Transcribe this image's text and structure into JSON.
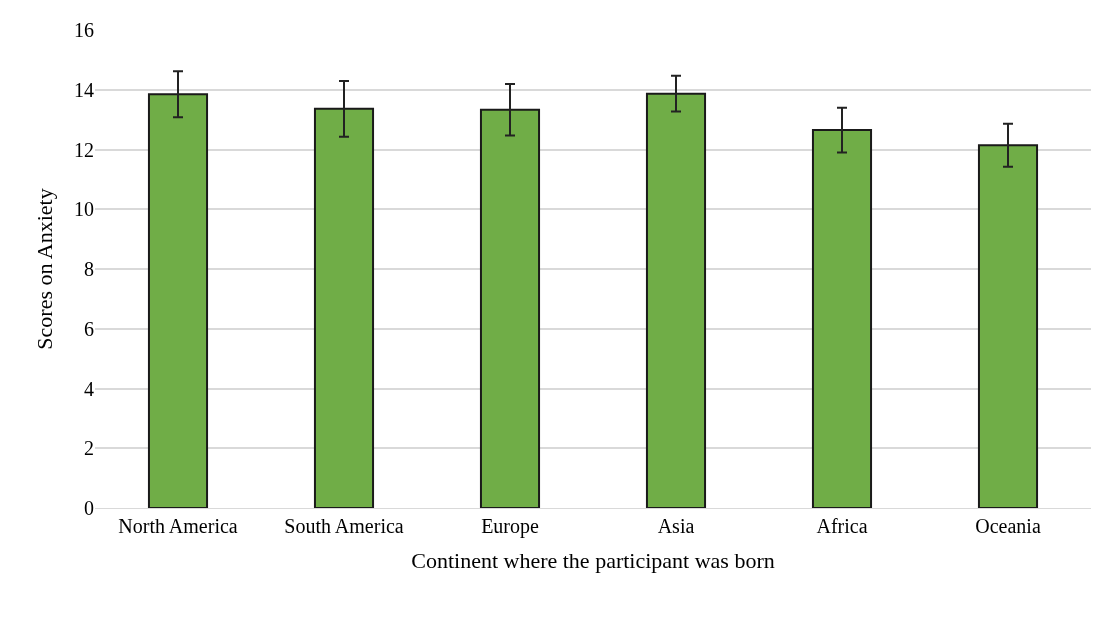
{
  "chart_data": {
    "type": "bar",
    "xlabel": "Continent where the participant was born",
    "ylabel": "Scores on Anxiety",
    "categories": [
      "North America",
      "South America",
      "Europe",
      "Asia",
      "Africa",
      "Oceania"
    ],
    "values": [
      13.85,
      13.36,
      13.33,
      13.87,
      12.65,
      12.14
    ],
    "errors": [
      0.77,
      0.93,
      0.86,
      0.6,
      0.75,
      0.72
    ],
    "color": "#70ad47",
    "ylim": [
      0,
      16
    ],
    "yticks": [
      0,
      2,
      4,
      6,
      8,
      10,
      12,
      14,
      16
    ],
    "grid": "y"
  }
}
